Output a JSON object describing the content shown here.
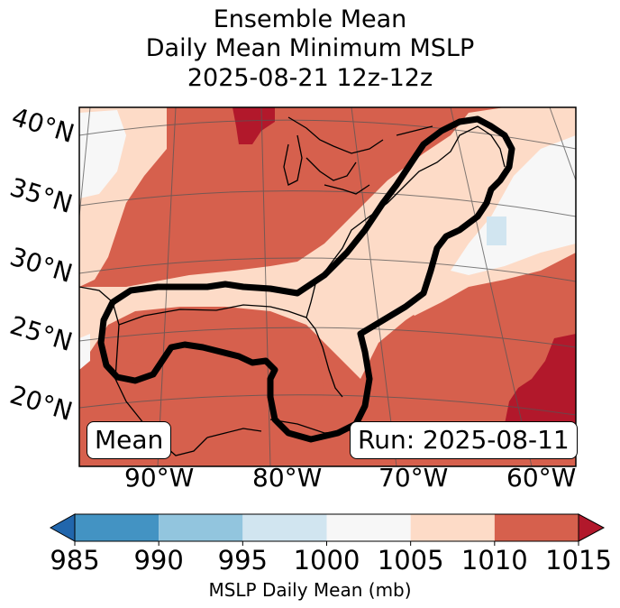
{
  "title_lines": [
    "Ensemble Mean",
    "Daily Mean Minimum MSLP",
    "2025-08-21 12z-12z"
  ],
  "lat_labels": [
    "40°N",
    "35°N",
    "30°N",
    "25°N",
    "20°N"
  ],
  "lon_labels": [
    "90°W",
    "80°W",
    "70°W",
    "60°W"
  ],
  "mean_box": "Mean",
  "run_box": "Run: 2025-08-11",
  "colorbar": {
    "label": "MSLP Daily Mean (mb)",
    "ticks": [
      "985",
      "990",
      "995",
      "1000",
      "1005",
      "1010",
      "1015"
    ],
    "colors": [
      "#2166ac",
      "#4393c3",
      "#92c5de",
      "#d1e5f0",
      "#f7f7f7",
      "#fddbc7",
      "#d6604d",
      "#b2182b"
    ],
    "extend": "both"
  },
  "map_colors": {
    "1000-1005": "#f7f7f7",
    "1005-1010": "#fddbc7",
    "1010-1015": "#d6604d",
    ">1015": "#b2182b",
    "995-1000": "#d1e5f0",
    "coastline": "#000000",
    "contour": "#000000"
  }
}
